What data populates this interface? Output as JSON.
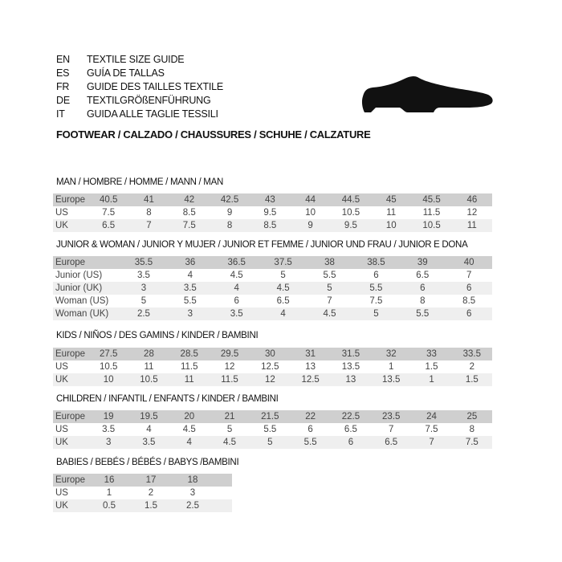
{
  "header": {
    "languages": [
      {
        "code": "EN",
        "title": "TEXTILE SIZE GUIDE"
      },
      {
        "code": "ES",
        "title": "GUÍA DE TALLAS"
      },
      {
        "code": "FR",
        "title": "GUIDE DES TAILLES TEXTILE"
      },
      {
        "code": "DE",
        "title": "TEXTILGRÖßENFÜHRUNG"
      },
      {
        "code": "IT",
        "title": "GUIDA ALLE TAGLIE TESSILI"
      }
    ],
    "footwear": "FOOTWEAR / CALZADO / CHAUSSURES / SCHUHE / CALZATURE",
    "icon": "shoe-icon"
  },
  "colors": {
    "header_row": "#cfcfcf",
    "alt_row": "#efefef"
  },
  "sections": [
    {
      "title": "MAN / HOMBRE / HOMME / MANN / MAN",
      "rows": [
        {
          "label": "Europe",
          "values": [
            "40.5",
            "41",
            "42",
            "42.5",
            "43",
            "44",
            "44.5",
            "45",
            "45.5",
            "46"
          ]
        },
        {
          "label": "US",
          "values": [
            "7.5",
            "8",
            "8.5",
            "9",
            "9.5",
            "10",
            "10.5",
            "11",
            "11.5",
            "12"
          ]
        },
        {
          "label": "UK",
          "values": [
            "6.5",
            "7",
            "7.5",
            "8",
            "8.5",
            "9",
            "9.5",
            "10",
            "10.5",
            "11"
          ]
        }
      ]
    },
    {
      "title": "JUNIOR & WOMAN / JUNIOR Y MUJER / JUNIOR ET FEMME / JUNIOR UND FRAU / JUNIOR E DONA",
      "rows": [
        {
          "label": "Europe",
          "values": [
            "35.5",
            "36",
            "36.5",
            "37.5",
            "38",
            "38.5",
            "39",
            "40"
          ]
        },
        {
          "label": "Junior (US)",
          "values": [
            "3.5",
            "4",
            "4.5",
            "5",
            "5.5",
            "6",
            "6.5",
            "7"
          ]
        },
        {
          "label": "Junior (UK)",
          "values": [
            "3",
            "3.5",
            "4",
            "4.5",
            "5",
            "5.5",
            "6",
            "6"
          ]
        },
        {
          "label": "Woman (US)",
          "values": [
            "5",
            "5.5",
            "6",
            "6.5",
            "7",
            "7.5",
            "8",
            "8.5"
          ]
        },
        {
          "label": "Woman (UK)",
          "values": [
            "2.5",
            "3",
            "3.5",
            "4",
            "4.5",
            "5",
            "5.5",
            "6"
          ]
        }
      ]
    },
    {
      "title": "KIDS / NIÑOS / DES GAMINS / KINDER / BAMBINI",
      "rows": [
        {
          "label": "Europe",
          "values": [
            "27.5",
            "28",
            "28.5",
            "29.5",
            "30",
            "31",
            "31.5",
            "32",
            "33",
            "33.5"
          ]
        },
        {
          "label": "US",
          "values": [
            "10.5",
            "11",
            "11.5",
            "12",
            "12.5",
            "13",
            "13.5",
            "1",
            "1.5",
            "2"
          ]
        },
        {
          "label": "UK",
          "values": [
            "10",
            "10.5",
            "11",
            "11.5",
            "12",
            "12.5",
            "13",
            "13.5",
            "1",
            "1.5"
          ]
        }
      ]
    },
    {
      "title": "CHILDREN / INFANTIL / ENFANTS / KINDER / BAMBINI",
      "rows": [
        {
          "label": "Europe",
          "values": [
            "19",
            "19.5",
            "20",
            "21",
            "21.5",
            "22",
            "22.5",
            "23.5",
            "24",
            "25"
          ]
        },
        {
          "label": "US",
          "values": [
            "3.5",
            "4",
            "4.5",
            "5",
            "5.5",
            "6",
            "6.5",
            "7",
            "7.5",
            "8"
          ]
        },
        {
          "label": "UK",
          "values": [
            "3",
            "3.5",
            "4",
            "4.5",
            "5",
            "5.5",
            "6",
            "6.5",
            "7",
            "7.5"
          ]
        }
      ]
    },
    {
      "title": "BABIES  / BEBÉS / BÉBÉS / BABYS /BAMBINI",
      "rows": [
        {
          "label": "Europe",
          "values": [
            "16",
            "17",
            "18"
          ]
        },
        {
          "label": "US",
          "values": [
            "1",
            "2",
            "3"
          ]
        },
        {
          "label": "UK",
          "values": [
            "0.5",
            "1.5",
            "2.5"
          ]
        }
      ]
    }
  ]
}
